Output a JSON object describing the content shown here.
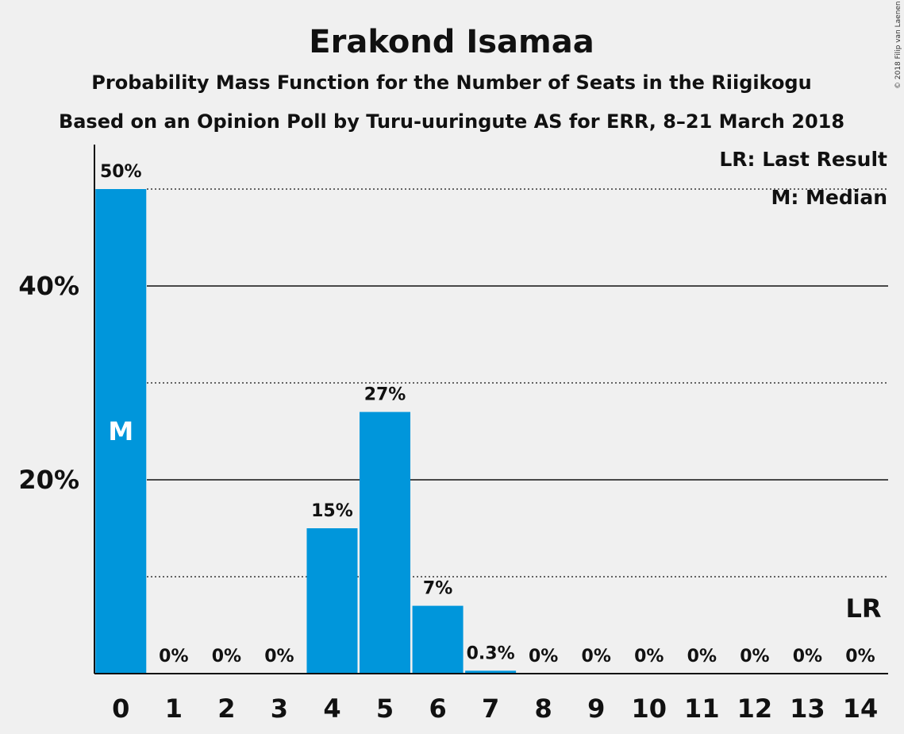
{
  "chart_data": {
    "type": "bar",
    "title": "Erakond Isamaa",
    "subtitle": "Probability Mass Function for the Number of Seats in the Riigikogu",
    "subtitle2": "Based on an Opinion Poll by Turu-uuringute AS for ERR, 8–21 March 2018",
    "categories": [
      "0",
      "1",
      "2",
      "3",
      "4",
      "5",
      "6",
      "7",
      "8",
      "9",
      "10",
      "11",
      "12",
      "13",
      "14"
    ],
    "values": [
      50,
      0,
      0,
      0,
      15,
      27,
      7,
      0.3,
      0,
      0,
      0,
      0,
      0,
      0,
      0
    ],
    "value_labels": [
      "50%",
      "0%",
      "0%",
      "0%",
      "15%",
      "27%",
      "7%",
      "0.3%",
      "0%",
      "0%",
      "0%",
      "0%",
      "0%",
      "0%",
      "0%"
    ],
    "ylim": [
      0,
      55
    ],
    "yticks": [
      {
        "value": 20,
        "label": "20%"
      },
      {
        "value": 40,
        "label": "40%"
      }
    ],
    "minor_gridlines": [
      10,
      30,
      50
    ],
    "bar_color": "#0096db",
    "median": {
      "index": 0,
      "label": "M"
    },
    "last_result": {
      "index": 14,
      "label": "LR"
    },
    "legend": {
      "position": "top-right",
      "lines": [
        "LR: Last Result",
        "M: Median"
      ]
    },
    "copyright": "© 2018 Filip van Laenen"
  }
}
